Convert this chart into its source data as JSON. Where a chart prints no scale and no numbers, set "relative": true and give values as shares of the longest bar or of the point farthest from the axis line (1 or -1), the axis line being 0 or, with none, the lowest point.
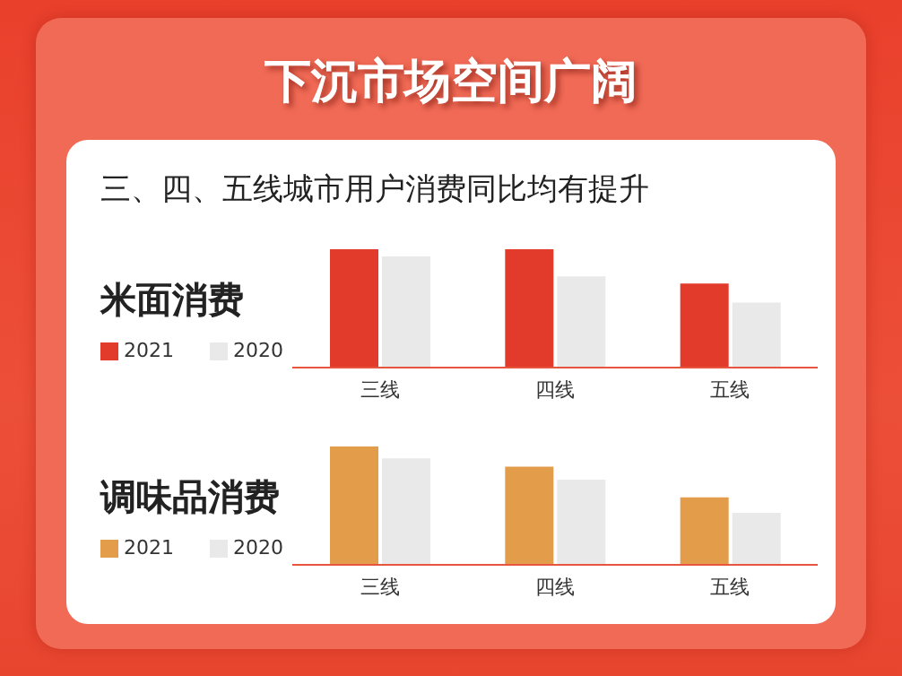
{
  "chart_data": [
    {
      "type": "bar",
      "title": "米面消费",
      "annotations": [
        "下沉市场空间广阔",
        "三、四、五线城市用户消费同比均有提升"
      ],
      "categories": [
        "三线",
        "四线",
        "五线"
      ],
      "relative": true,
      "legend": "left",
      "series": [
        {
          "name": "2021",
          "color": "#e33b2b",
          "values": [
            1,
            1,
            0.71
          ]
        },
        {
          "name": "2020",
          "color": "#e9e9e9",
          "values": [
            0.94,
            0.77,
            0.55
          ]
        }
      ]
    },
    {
      "type": "bar",
      "title": "调味品消费",
      "categories": [
        "三线",
        "四线",
        "五线"
      ],
      "relative": true,
      "legend": "left",
      "series": [
        {
          "name": "2021",
          "color": "#e29c4a",
          "values": [
            1,
            0.83,
            0.57
          ]
        },
        {
          "name": "2020",
          "color": "#e9e9e9",
          "values": [
            0.9,
            0.72,
            0.44
          ]
        }
      ]
    }
  ]
}
